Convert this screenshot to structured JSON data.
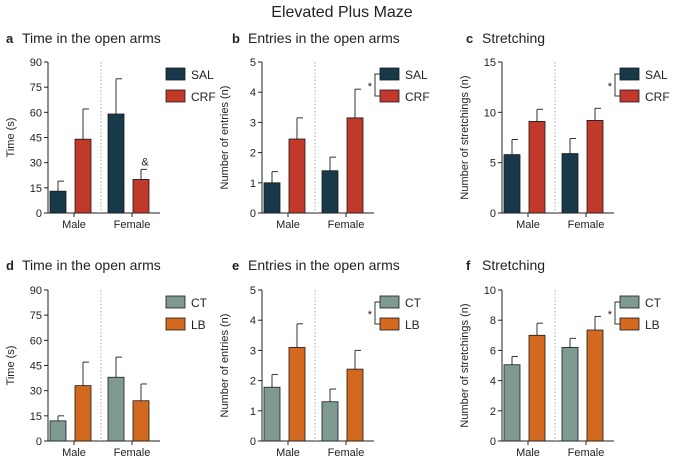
{
  "title": "Elevated Plus Maze",
  "colors": {
    "SAL": "#17394a",
    "CRF": "#c0392b",
    "CT": "#7f9a92",
    "LB": "#d2691e"
  },
  "chart_data": [
    {
      "id": "a",
      "letter": "a",
      "type": "bar",
      "title": "Time in the open arms",
      "ylabel": "Time (s)",
      "ylim": [
        0,
        90
      ],
      "yticks": [
        0,
        15,
        30,
        45,
        60,
        75,
        90
      ],
      "categories": [
        "Male",
        "Female"
      ],
      "series": [
        {
          "name": "SAL",
          "values": [
            13,
            59
          ],
          "errors": [
            6,
            21
          ]
        },
        {
          "name": "CRF",
          "values": [
            44,
            20
          ],
          "errors": [
            18,
            6
          ]
        }
      ],
      "annotations": [
        {
          "text": "&",
          "category": 1,
          "series": 1
        }
      ],
      "bracket": false
    },
    {
      "id": "b",
      "letter": "b",
      "type": "bar",
      "title": "Entries in the open arms",
      "ylabel": "Number of entries (n)",
      "ylim": [
        0,
        5
      ],
      "yticks": [
        0,
        1,
        2,
        3,
        4,
        5
      ],
      "categories": [
        "Male",
        "Female"
      ],
      "series": [
        {
          "name": "SAL",
          "values": [
            1.0,
            1.4
          ],
          "errors": [
            0.37,
            0.45
          ]
        },
        {
          "name": "CRF",
          "values": [
            2.45,
            3.15
          ],
          "errors": [
            0.7,
            0.95
          ]
        }
      ],
      "annotations": [],
      "bracket": true,
      "bracket_text": "*"
    },
    {
      "id": "c",
      "letter": "c",
      "type": "bar",
      "title": "Stretching",
      "ylabel": "Number of stretchings (n)",
      "ylim": [
        0,
        15
      ],
      "yticks": [
        0,
        5,
        10,
        15
      ],
      "categories": [
        "Male",
        "Female"
      ],
      "series": [
        {
          "name": "SAL",
          "values": [
            5.8,
            5.9
          ],
          "errors": [
            1.5,
            1.5
          ]
        },
        {
          "name": "CRF",
          "values": [
            9.1,
            9.2
          ],
          "errors": [
            1.2,
            1.2
          ]
        }
      ],
      "annotations": [],
      "bracket": true,
      "bracket_text": "*"
    },
    {
      "id": "d",
      "letter": "d",
      "type": "bar",
      "title": "Time in the open arms",
      "ylabel": "Time (s)",
      "ylim": [
        0,
        90
      ],
      "yticks": [
        0,
        15,
        30,
        45,
        60,
        75,
        90
      ],
      "categories": [
        "Male",
        "Female"
      ],
      "series": [
        {
          "name": "CT",
          "values": [
            12,
            38
          ],
          "errors": [
            3,
            12
          ]
        },
        {
          "name": "LB",
          "values": [
            33,
            24
          ],
          "errors": [
            14,
            10
          ]
        }
      ],
      "annotations": [],
      "bracket": false
    },
    {
      "id": "e",
      "letter": "e",
      "type": "bar",
      "title": "Entries in the open arms",
      "ylabel": "Number of entries (n)",
      "ylim": [
        0,
        5
      ],
      "yticks": [
        0,
        1,
        2,
        3,
        4,
        5
      ],
      "categories": [
        "Male",
        "Female"
      ],
      "series": [
        {
          "name": "CT",
          "values": [
            1.78,
            1.3
          ],
          "errors": [
            0.42,
            0.42
          ]
        },
        {
          "name": "LB",
          "values": [
            3.1,
            2.38
          ],
          "errors": [
            0.78,
            0.62
          ]
        }
      ],
      "annotations": [],
      "bracket": true,
      "bracket_text": "*"
    },
    {
      "id": "f",
      "letter": "f",
      "type": "bar",
      "title": "Stretching",
      "ylabel": "Number of stretchings (n)",
      "ylim": [
        0,
        10
      ],
      "yticks": [
        0,
        2,
        4,
        6,
        8,
        10
      ],
      "categories": [
        "Male",
        "Female"
      ],
      "series": [
        {
          "name": "CT",
          "values": [
            5.05,
            6.2
          ],
          "errors": [
            0.55,
            0.6
          ]
        },
        {
          "name": "LB",
          "values": [
            7.0,
            7.35
          ],
          "errors": [
            0.8,
            0.9
          ]
        }
      ],
      "annotations": [],
      "bracket": true,
      "bracket_text": "*"
    }
  ]
}
